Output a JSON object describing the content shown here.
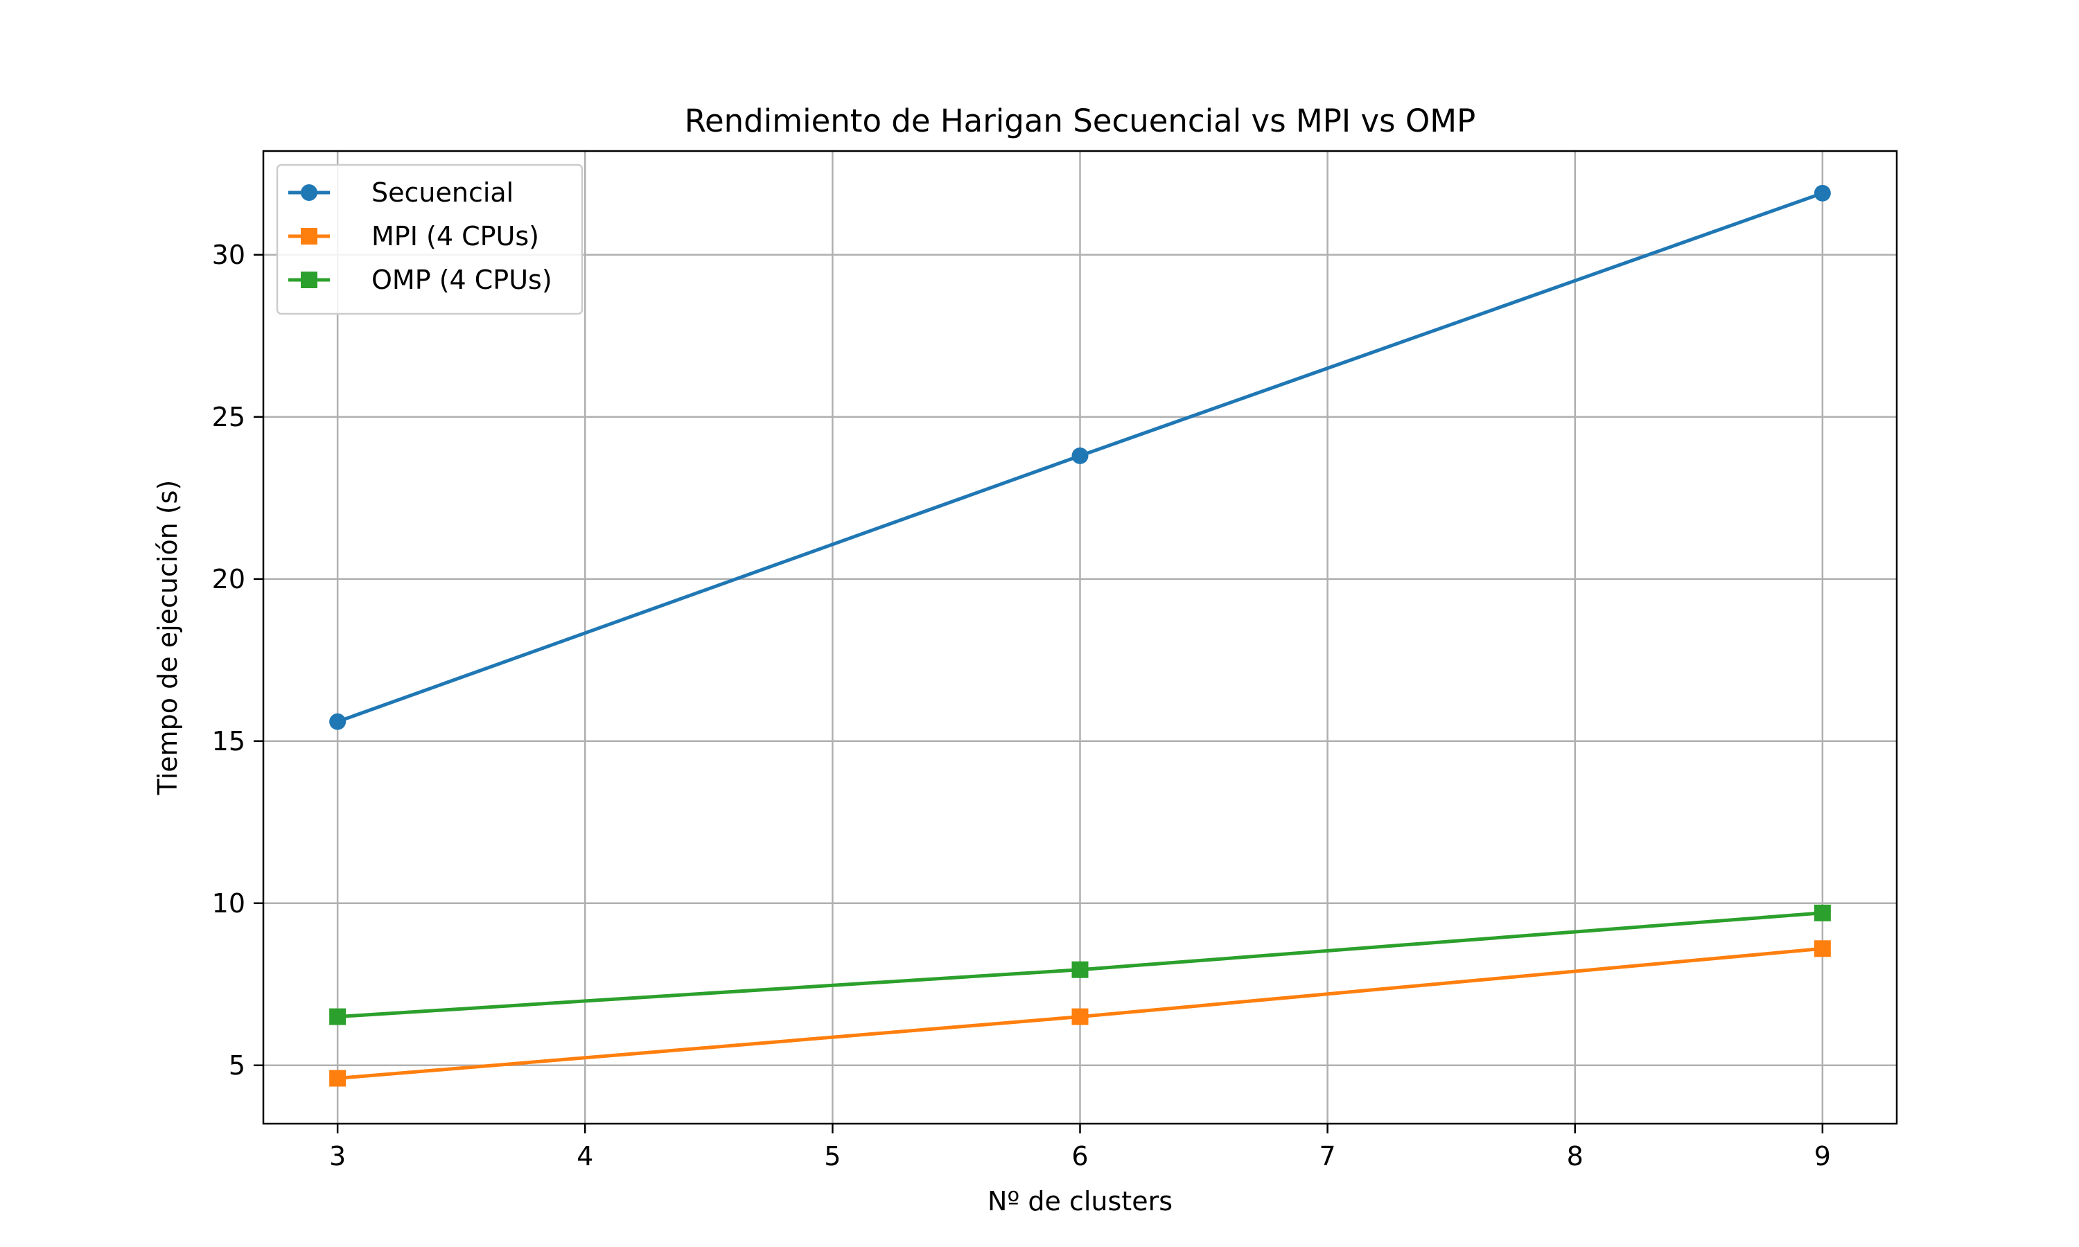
{
  "chart_data": {
    "type": "line",
    "title": "Rendimiento de Harigan Secuencial vs MPI vs OMP",
    "xlabel": "Nº de clusters",
    "ylabel": "Tiempo de ejecución (s)",
    "xlim": [
      2.7,
      9.3
    ],
    "ylim": [
      3.2,
      33.2
    ],
    "xticks": [
      3,
      4,
      5,
      6,
      7,
      8,
      9
    ],
    "yticks": [
      5,
      10,
      15,
      20,
      25,
      30
    ],
    "grid": true,
    "legend_position": "top-left",
    "x": [
      3,
      6,
      9
    ],
    "series": [
      {
        "name": "Secuencial",
        "values": [
          15.6,
          23.8,
          31.9
        ],
        "color": "#1f77b4",
        "marker": "circle"
      },
      {
        "name": "MPI (4 CPUs)",
        "values": [
          4.6,
          6.5,
          8.6
        ],
        "color": "#ff7f0e",
        "marker": "square"
      },
      {
        "name": "OMP (4 CPUs)",
        "values": [
          6.5,
          7.95,
          9.7
        ],
        "color": "#2ca02c",
        "marker": "square"
      }
    ]
  }
}
